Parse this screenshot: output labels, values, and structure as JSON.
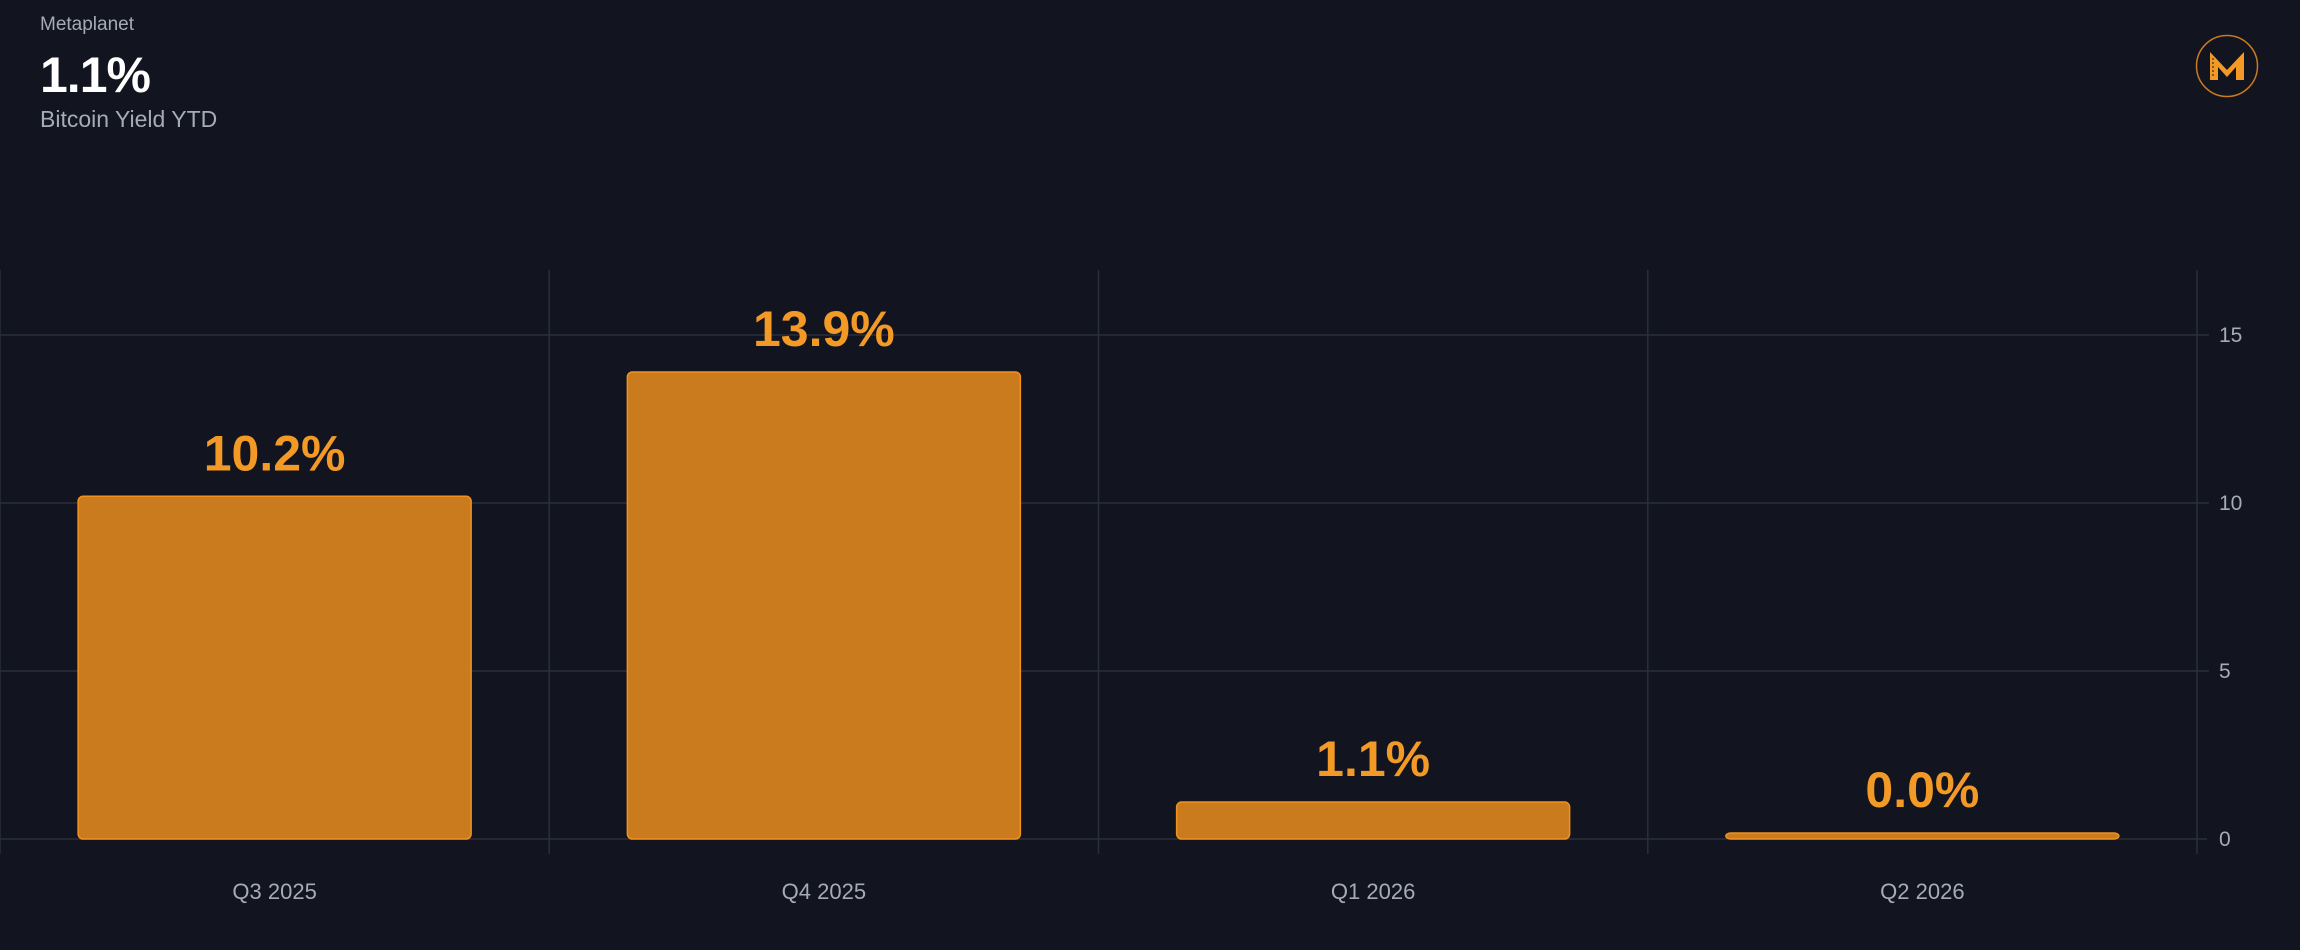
{
  "header": {
    "company": "Metaplanet",
    "value": "1.1%",
    "subtitle": "Bitcoin Yield YTD"
  },
  "logo": {
    "icon": "metaplanet-m-logo-icon",
    "letter": "M"
  },
  "colors": {
    "background": "#12141f",
    "bar_fill": "#c97b1e",
    "bar_stroke": "#f0921f",
    "label": "#f39a26",
    "grid": "#2a2e3c",
    "text_muted": "#a7abb8"
  },
  "chart_data": {
    "type": "bar",
    "categories": [
      "Q3 2025",
      "Q4 2025",
      "Q1 2026",
      "Q2 2026"
    ],
    "values": [
      10.2,
      13.9,
      1.1,
      0.0
    ],
    "data_labels": [
      "10.2%",
      "13.9%",
      "1.1%",
      "0.0%"
    ],
    "ylim": [
      0,
      17
    ],
    "yticks": [
      0,
      5,
      10,
      15
    ],
    "y_axis_position": "right",
    "grid": true
  }
}
